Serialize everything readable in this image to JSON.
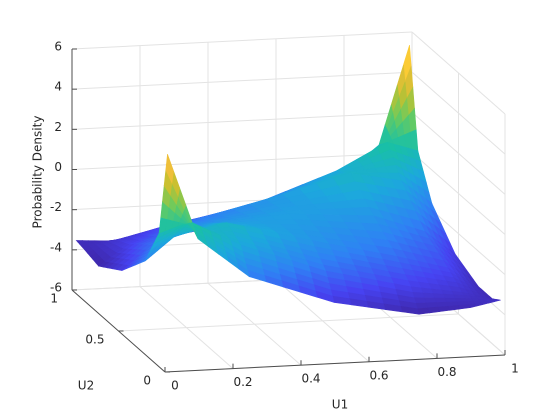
{
  "chart_data": {
    "type": "surface",
    "x": [
      0.01,
      0.1,
      0.25,
      0.5,
      0.75,
      0.9,
      0.99
    ],
    "y": [
      0.01,
      0.1,
      0.25,
      0.5,
      0.75,
      0.9,
      0.99
    ],
    "z": [
      [
        4.8,
        0.5,
        -1.5,
        -3.0,
        -3.8,
        -3.6,
        -3.3
      ],
      [
        0.5,
        1.0,
        -0.3,
        -1.8,
        -2.8,
        -3.2,
        -3.6
      ],
      [
        -1.5,
        -0.3,
        0.2,
        -0.9,
        -1.9,
        -2.6,
        -3.6
      ],
      [
        -3.0,
        -1.8,
        -0.9,
        -0.6,
        -0.9,
        -1.8,
        -3.0
      ],
      [
        -3.8,
        -2.8,
        -1.9,
        -0.9,
        0.2,
        -0.3,
        -1.5
      ],
      [
        -3.6,
        -3.2,
        -2.6,
        -1.8,
        -0.3,
        1.0,
        0.5
      ],
      [
        -3.5,
        -3.6,
        -3.6,
        -3.0,
        -1.5,
        0.5,
        5.4
      ]
    ],
    "xlabel": "U1",
    "ylabel": "U2",
    "zlabel": "Probability Density",
    "xlim": [
      0,
      1
    ],
    "ylim": [
      0,
      1
    ],
    "zlim": [
      -6,
      6
    ],
    "xticks": [
      0,
      0.2,
      0.4,
      0.6,
      0.8,
      1
    ],
    "yticks": [
      0,
      0.5,
      1
    ],
    "zticks": [
      -6,
      -4,
      -2,
      0,
      2,
      4,
      6
    ],
    "grid": true,
    "colormap": [
      "#3e26a8",
      "#4743f2",
      "#2f81f4",
      "#1ca9dc",
      "#19c0a6",
      "#67cb60",
      "#c4c02f",
      "#fbbf3c",
      "#f9fb15"
    ]
  }
}
